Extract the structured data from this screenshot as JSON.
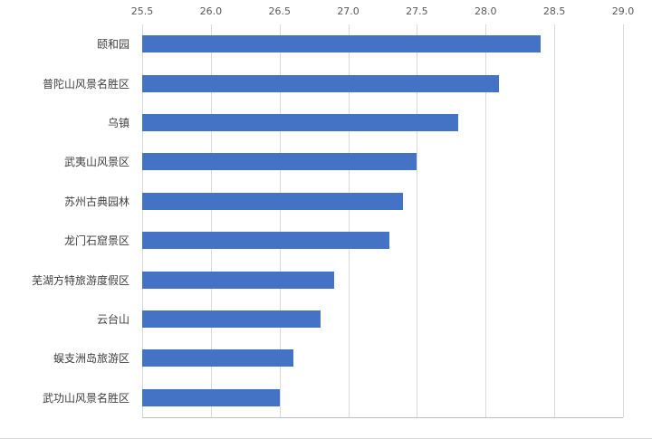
{
  "chart_data": {
    "type": "bar",
    "orientation": "horizontal",
    "title": "",
    "xlabel": "",
    "ylabel": "",
    "categories": [
      "颐和园",
      "普陀山风景名胜区",
      "乌镇",
      "武夷山风景区",
      "苏州古典园林",
      "龙门石窟景区",
      "芜湖方特旅游度假区",
      "云台山",
      "蜈支洲岛旅游区",
      "武功山风景名胜区"
    ],
    "values": [
      28.4,
      28.1,
      27.8,
      27.5,
      27.4,
      27.3,
      26.9,
      26.8,
      26.6,
      26.5
    ],
    "xlim": [
      25.5,
      29.0
    ],
    "x_ticks": [
      25.5,
      26.0,
      26.5,
      27.0,
      27.5,
      28.0,
      28.5,
      29.0
    ],
    "x_tick_labels": [
      "25.5",
      "26.0",
      "26.5",
      "27.0",
      "27.5",
      "28.0",
      "28.5",
      "29.0"
    ],
    "grid": true,
    "legend": false,
    "tick_position": "top",
    "colors": {
      "bar": "#4472c4",
      "gridline": "#d9d9d9",
      "axis_line": "#bfbfbf",
      "tick_label": "#595959",
      "category_label": "#404040",
      "background": "#ffffff"
    }
  }
}
